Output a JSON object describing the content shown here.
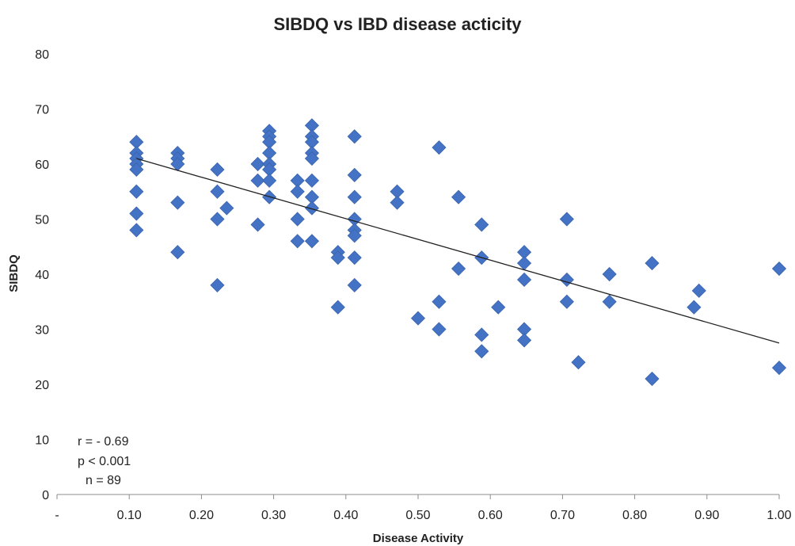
{
  "chart_data": {
    "type": "scatter",
    "title": "SIBDQ vs IBD disease acticity",
    "xlabel": "Disease Activity",
    "ylabel": "SIBDQ",
    "xlim": [
      0,
      1.0
    ],
    "ylim": [
      0,
      80
    ],
    "x_ticks": [
      {
        "value": 0,
        "label": "-"
      },
      {
        "value": 0.1,
        "label": "0.10"
      },
      {
        "value": 0.2,
        "label": "0.20"
      },
      {
        "value": 0.3,
        "label": "0.30"
      },
      {
        "value": 0.4,
        "label": "0.40"
      },
      {
        "value": 0.5,
        "label": "0.50"
      },
      {
        "value": 0.6,
        "label": "0.60"
      },
      {
        "value": 0.7,
        "label": "0.70"
      },
      {
        "value": 0.8,
        "label": "0.80"
      },
      {
        "value": 0.9,
        "label": "0.90"
      },
      {
        "value": 1.0,
        "label": "1.00"
      }
    ],
    "y_ticks": [
      {
        "value": 0,
        "label": "0"
      },
      {
        "value": 10,
        "label": "10"
      },
      {
        "value": 20,
        "label": "20"
      },
      {
        "value": 30,
        "label": "30"
      },
      {
        "value": 40,
        "label": "40"
      },
      {
        "value": 50,
        "label": "50"
      },
      {
        "value": 60,
        "label": "60"
      },
      {
        "value": 70,
        "label": "70"
      },
      {
        "value": 80,
        "label": "80"
      }
    ],
    "grid": false,
    "marker_color": "#4472C4",
    "trendline": {
      "x": [
        0.11,
        1.0
      ],
      "y": [
        61,
        27.5
      ],
      "color": "#222222"
    },
    "annotations": [
      "r = - 0.69",
      "p < 0.001",
      "n = 89"
    ],
    "points": [
      {
        "x": 0.11,
        "y": 64
      },
      {
        "x": 0.11,
        "y": 62
      },
      {
        "x": 0.11,
        "y": 61
      },
      {
        "x": 0.11,
        "y": 60
      },
      {
        "x": 0.11,
        "y": 59
      },
      {
        "x": 0.11,
        "y": 55
      },
      {
        "x": 0.11,
        "y": 51
      },
      {
        "x": 0.11,
        "y": 48
      },
      {
        "x": 0.167,
        "y": 62
      },
      {
        "x": 0.167,
        "y": 61
      },
      {
        "x": 0.167,
        "y": 60
      },
      {
        "x": 0.167,
        "y": 53
      },
      {
        "x": 0.167,
        "y": 44
      },
      {
        "x": 0.222,
        "y": 59
      },
      {
        "x": 0.222,
        "y": 55
      },
      {
        "x": 0.222,
        "y": 50
      },
      {
        "x": 0.222,
        "y": 38
      },
      {
        "x": 0.235,
        "y": 52
      },
      {
        "x": 0.278,
        "y": 60
      },
      {
        "x": 0.278,
        "y": 57
      },
      {
        "x": 0.278,
        "y": 49
      },
      {
        "x": 0.294,
        "y": 66
      },
      {
        "x": 0.294,
        "y": 65
      },
      {
        "x": 0.294,
        "y": 64
      },
      {
        "x": 0.294,
        "y": 62
      },
      {
        "x": 0.294,
        "y": 60
      },
      {
        "x": 0.294,
        "y": 59
      },
      {
        "x": 0.294,
        "y": 57
      },
      {
        "x": 0.294,
        "y": 54
      },
      {
        "x": 0.333,
        "y": 57
      },
      {
        "x": 0.333,
        "y": 55
      },
      {
        "x": 0.333,
        "y": 50
      },
      {
        "x": 0.333,
        "y": 46
      },
      {
        "x": 0.353,
        "y": 67
      },
      {
        "x": 0.353,
        "y": 65
      },
      {
        "x": 0.353,
        "y": 64
      },
      {
        "x": 0.353,
        "y": 62
      },
      {
        "x": 0.353,
        "y": 61
      },
      {
        "x": 0.353,
        "y": 57
      },
      {
        "x": 0.353,
        "y": 54
      },
      {
        "x": 0.353,
        "y": 52
      },
      {
        "x": 0.353,
        "y": 46
      },
      {
        "x": 0.389,
        "y": 44
      },
      {
        "x": 0.389,
        "y": 43
      },
      {
        "x": 0.389,
        "y": 34
      },
      {
        "x": 0.412,
        "y": 65
      },
      {
        "x": 0.412,
        "y": 58
      },
      {
        "x": 0.412,
        "y": 54
      },
      {
        "x": 0.412,
        "y": 50
      },
      {
        "x": 0.412,
        "y": 48
      },
      {
        "x": 0.412,
        "y": 47
      },
      {
        "x": 0.412,
        "y": 43
      },
      {
        "x": 0.412,
        "y": 38
      },
      {
        "x": 0.471,
        "y": 55
      },
      {
        "x": 0.471,
        "y": 53
      },
      {
        "x": 0.5,
        "y": 32
      },
      {
        "x": 0.529,
        "y": 63
      },
      {
        "x": 0.529,
        "y": 35
      },
      {
        "x": 0.529,
        "y": 30
      },
      {
        "x": 0.556,
        "y": 54
      },
      {
        "x": 0.556,
        "y": 41
      },
      {
        "x": 0.588,
        "y": 49
      },
      {
        "x": 0.588,
        "y": 43
      },
      {
        "x": 0.588,
        "y": 29
      },
      {
        "x": 0.588,
        "y": 26
      },
      {
        "x": 0.611,
        "y": 34
      },
      {
        "x": 0.647,
        "y": 44
      },
      {
        "x": 0.647,
        "y": 42
      },
      {
        "x": 0.647,
        "y": 39
      },
      {
        "x": 0.647,
        "y": 30
      },
      {
        "x": 0.647,
        "y": 28
      },
      {
        "x": 0.706,
        "y": 50
      },
      {
        "x": 0.706,
        "y": 39
      },
      {
        "x": 0.706,
        "y": 35
      },
      {
        "x": 0.722,
        "y": 24
      },
      {
        "x": 0.765,
        "y": 40
      },
      {
        "x": 0.765,
        "y": 35
      },
      {
        "x": 0.824,
        "y": 42
      },
      {
        "x": 0.824,
        "y": 21
      },
      {
        "x": 0.882,
        "y": 34
      },
      {
        "x": 0.889,
        "y": 37
      },
      {
        "x": 1.0,
        "y": 41
      },
      {
        "x": 1.0,
        "y": 23
      }
    ]
  }
}
